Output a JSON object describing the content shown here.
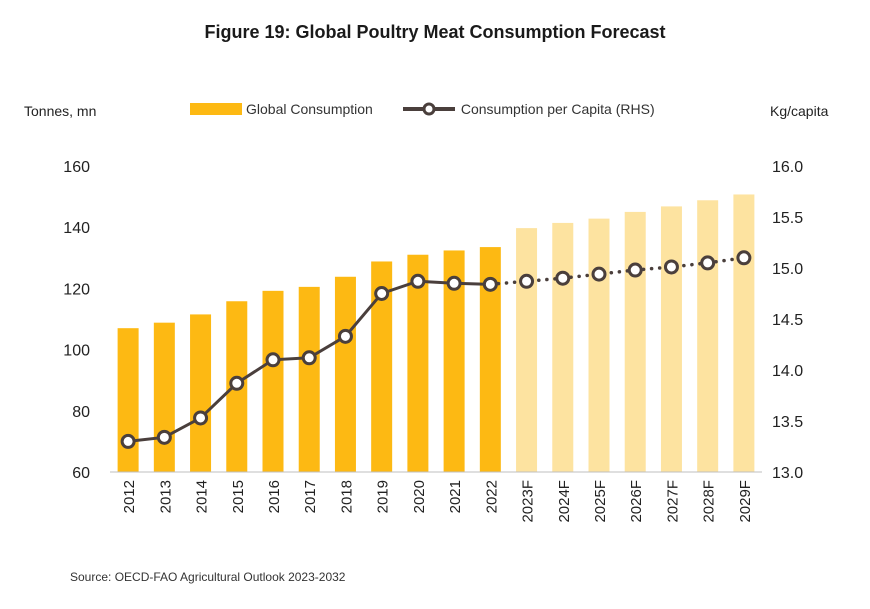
{
  "title": "Figure 19: Global Poultry Meat Consumption Forecast",
  "left_unit": "Tonnes, mn",
  "right_unit": "Kg/capita",
  "source": "Source: OECD-FAO Agricultural Outlook 2023-2032",
  "colors": {
    "actual": "#FDB913",
    "forecast": "#FDE3A0",
    "line": "#4A3F3C"
  },
  "chart_data": {
    "type": "bar",
    "categories": [
      "2012",
      "2013",
      "2014",
      "2015",
      "2016",
      "2017",
      "2018",
      "2019",
      "2020",
      "2021",
      "2022",
      "2023F",
      "2024F",
      "2025F",
      "2026F",
      "2027F",
      "2028F",
      "2029F"
    ],
    "forecast_start_index": 11,
    "series": [
      {
        "name": "Global Consumption",
        "type": "bar",
        "axis": "left",
        "values": [
          107,
          108.8,
          111.5,
          115.8,
          119.2,
          120.5,
          123.8,
          128.8,
          131,
          132.4,
          133.5,
          139.7,
          141.4,
          142.8,
          145,
          146.8,
          148.8,
          150.7
        ]
      },
      {
        "name": "Consumption per Capita (RHS)",
        "type": "line",
        "axis": "right",
        "values": [
          13.3,
          13.34,
          13.53,
          13.87,
          14.1,
          14.12,
          14.33,
          14.75,
          14.87,
          14.85,
          14.84,
          14.87,
          14.9,
          14.94,
          14.98,
          15.01,
          15.05,
          15.1
        ]
      }
    ],
    "ylim_left": [
      60,
      160
    ],
    "yticks_left": [
      "60",
      "80",
      "100",
      "120",
      "140",
      "160"
    ],
    "ylim_right": [
      13.0,
      16.0
    ],
    "yticks_right": [
      "13.0",
      "13.5",
      "14.0",
      "14.5",
      "15.0",
      "15.5",
      "16.0"
    ],
    "legend_position": "top"
  }
}
